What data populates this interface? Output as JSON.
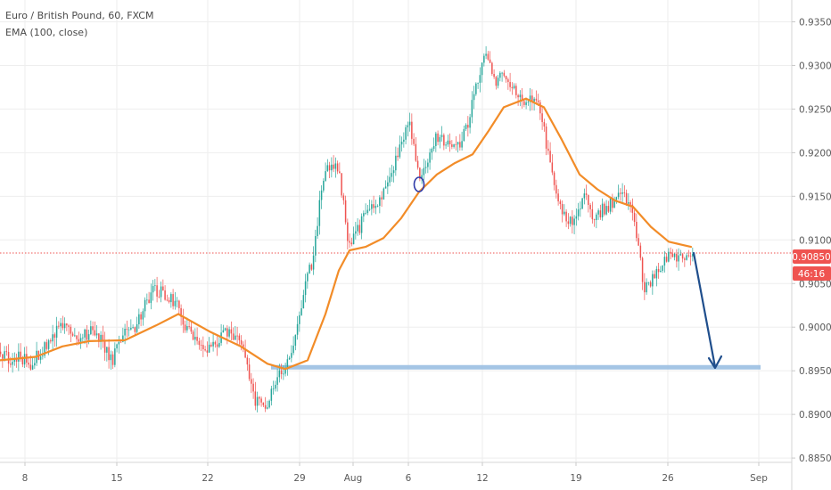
{
  "chart_data": {
    "type": "candlestick",
    "title": "Euro / British Pound, 60, FXCM",
    "indicator_label": "EMA (100, close)",
    "x_tick_labels": [
      "8",
      "15",
      "22",
      "29",
      "Aug",
      "6",
      "12",
      "19",
      "26",
      "Sep"
    ],
    "y_ticks": [
      0.935,
      0.93,
      0.925,
      0.92,
      0.915,
      0.91,
      0.905,
      0.9,
      0.895,
      0.89,
      0.885
    ],
    "y_tick_labels": [
      "0.93500",
      "0.93000",
      "0.92500",
      "0.92000",
      "0.91500",
      "0.91000",
      "0.90500",
      "0.90000",
      "0.89500",
      "0.89000",
      "0.88500"
    ],
    "ylim": [
      0.8845,
      0.9375
    ],
    "grid": true,
    "current_price": 0.9085,
    "current_price_label": "0.90850",
    "countdown_label": "46:16",
    "support_level": 0.8954,
    "price_path": [
      [
        0,
        0.8972
      ],
      [
        10,
        0.8962
      ],
      [
        22,
        0.8965
      ],
      [
        35,
        0.8958
      ],
      [
        48,
        0.8975
      ],
      [
        58,
        0.8992
      ],
      [
        72,
        0.9002
      ],
      [
        85,
        0.8985
      ],
      [
        100,
        0.8995
      ],
      [
        112,
        0.8985
      ],
      [
        125,
        0.8962
      ],
      [
        138,
        0.8992
      ],
      [
        150,
        0.8992
      ],
      [
        162,
        0.9028
      ],
      [
        172,
        0.9045
      ],
      [
        185,
        0.9035
      ],
      [
        198,
        0.9025
      ],
      [
        210,
        0.8995
      ],
      [
        222,
        0.8978
      ],
      [
        235,
        0.8975
      ],
      [
        248,
        0.8992
      ],
      [
        260,
        0.8995
      ],
      [
        272,
        0.8968
      ],
      [
        285,
        0.8918
      ],
      [
        298,
        0.8912
      ],
      [
        307,
        0.8938
      ],
      [
        318,
        0.8955
      ],
      [
        330,
        0.8985
      ],
      [
        342,
        0.9045
      ],
      [
        350,
        0.9078
      ],
      [
        356,
        0.9125
      ],
      [
        362,
        0.9175
      ],
      [
        370,
        0.9182
      ],
      [
        380,
        0.9178
      ],
      [
        390,
        0.9095
      ],
      [
        400,
        0.9108
      ],
      [
        412,
        0.9138
      ],
      [
        425,
        0.9148
      ],
      [
        438,
        0.9172
      ],
      [
        450,
        0.9215
      ],
      [
        460,
        0.9232
      ],
      [
        470,
        0.9165
      ],
      [
        480,
        0.9198
      ],
      [
        490,
        0.9218
      ],
      [
        500,
        0.9212
      ],
      [
        512,
        0.9205
      ],
      [
        522,
        0.9225
      ],
      [
        532,
        0.9272
      ],
      [
        540,
        0.9305
      ],
      [
        546,
        0.9318
      ],
      [
        552,
        0.9278
      ],
      [
        562,
        0.9288
      ],
      [
        572,
        0.9272
      ],
      [
        584,
        0.9262
      ],
      [
        596,
        0.9258
      ],
      [
        606,
        0.9248
      ],
      [
        614,
        0.9198
      ],
      [
        622,
        0.9155
      ],
      [
        632,
        0.9125
      ],
      [
        642,
        0.9118
      ],
      [
        654,
        0.9152
      ],
      [
        666,
        0.9122
      ],
      [
        676,
        0.9135
      ],
      [
        688,
        0.9145
      ],
      [
        698,
        0.9155
      ],
      [
        708,
        0.9135
      ],
      [
        716,
        0.9088
      ],
      [
        722,
        0.9045
      ],
      [
        730,
        0.9052
      ],
      [
        738,
        0.9068
      ],
      [
        746,
        0.9082
      ],
      [
        754,
        0.9085
      ],
      [
        762,
        0.9075
      ],
      [
        770,
        0.9088
      ],
      [
        776,
        0.9085
      ]
    ],
    "ema_path": [
      [
        0,
        0.8962
      ],
      [
        40,
        0.8966
      ],
      [
        70,
        0.8978
      ],
      [
        100,
        0.8984
      ],
      [
        140,
        0.8985
      ],
      [
        175,
        0.9002
      ],
      [
        200,
        0.9015
      ],
      [
        235,
        0.8995
      ],
      [
        270,
        0.8978
      ],
      [
        300,
        0.8958
      ],
      [
        320,
        0.8952
      ],
      [
        345,
        0.8962
      ],
      [
        365,
        0.9015
      ],
      [
        380,
        0.9065
      ],
      [
        392,
        0.9088
      ],
      [
        410,
        0.9092
      ],
      [
        430,
        0.9102
      ],
      [
        450,
        0.9125
      ],
      [
        470,
        0.9155
      ],
      [
        490,
        0.9175
      ],
      [
        510,
        0.9188
      ],
      [
        530,
        0.9198
      ],
      [
        548,
        0.9225
      ],
      [
        565,
        0.9252
      ],
      [
        590,
        0.9262
      ],
      [
        610,
        0.9252
      ],
      [
        630,
        0.9215
      ],
      [
        650,
        0.9175
      ],
      [
        670,
        0.9158
      ],
      [
        690,
        0.9145
      ],
      [
        710,
        0.9138
      ],
      [
        730,
        0.9115
      ],
      [
        750,
        0.9098
      ],
      [
        775,
        0.9092
      ]
    ]
  }
}
